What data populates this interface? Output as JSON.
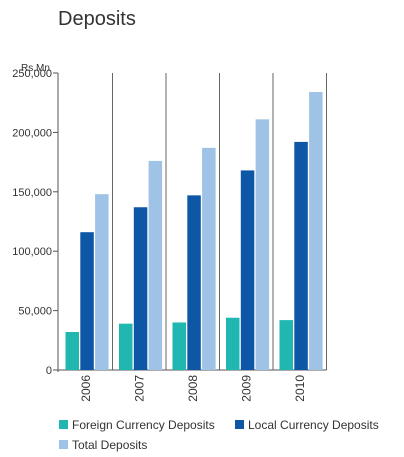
{
  "chart_data": {
    "type": "bar",
    "title": "Deposits",
    "ylabel": "Rs.Mn",
    "xlabel": "",
    "ylim": [
      0,
      250000
    ],
    "yticks": [
      0,
      50000,
      100000,
      150000,
      200000,
      250000
    ],
    "ytick_labels": [
      "0",
      "50,000",
      "100,000",
      "150,000",
      "200,000",
      "250,000"
    ],
    "categories": [
      "2006",
      "2007",
      "2008",
      "2009",
      "2010"
    ],
    "series": [
      {
        "name": "Foreign Currency Deposits",
        "color": "#1fb7b0",
        "values": [
          32000,
          39000,
          40000,
          44000,
          42000
        ]
      },
      {
        "name": "Local Currency Deposits",
        "color": "#0d57a6",
        "values": [
          116000,
          137000,
          147000,
          168000,
          192000
        ]
      },
      {
        "name": "Total Deposits",
        "color": "#9ec3e6",
        "values": [
          148000,
          176000,
          187000,
          211000,
          234000
        ]
      }
    ],
    "grid": false,
    "category_separators": true,
    "legend_position": "bottom"
  }
}
